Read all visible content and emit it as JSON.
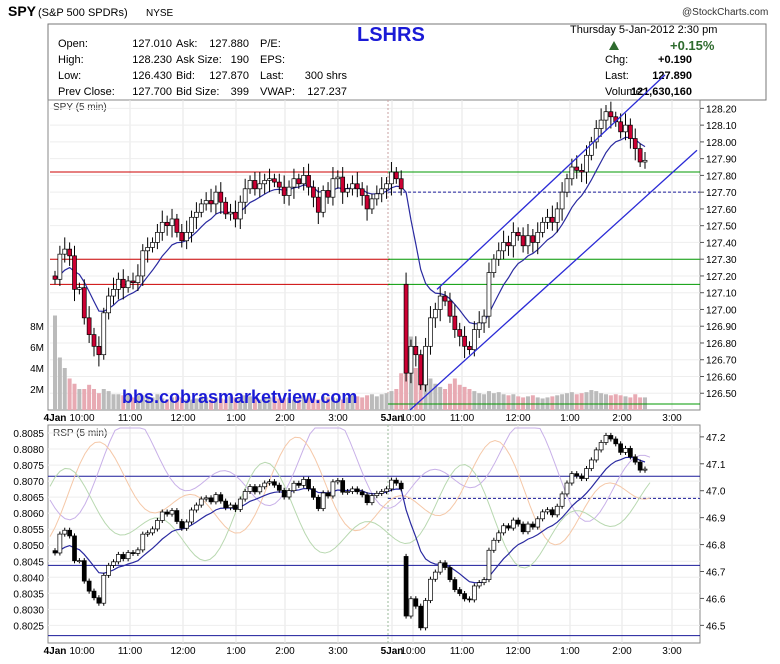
{
  "header": {
    "symbol": "SPY",
    "name": "(S&P 500 SPDRs)",
    "exchange": "NYSE",
    "watermark": "@StockCharts.com",
    "title_center": "LSHRS",
    "date_line": "Thursday  5-Jan-2012  2:30 pm",
    "change_pct": "+0.15%",
    "quote_left": [
      {
        "label": "Open:",
        "value": "127.010"
      },
      {
        "label": "High:",
        "value": "128.230"
      },
      {
        "label": "Low:",
        "value": "126.430"
      },
      {
        "label": "Prev Close:",
        "value": "127.700"
      }
    ],
    "quote_mid": [
      {
        "label": "Ask:",
        "value": "127.880"
      },
      {
        "label": "Ask Size:",
        "value": "190"
      },
      {
        "label": "Bid:",
        "value": "127.870"
      },
      {
        "label": "Bid Size:",
        "value": "399"
      }
    ],
    "quote_right": [
      {
        "label": "P/E:",
        "value": ""
      },
      {
        "label": "EPS:",
        "value": ""
      },
      {
        "label": "Last:",
        "value": "300 shrs"
      },
      {
        "label": "VWAP:",
        "value": "127.237"
      }
    ],
    "quote_far": [
      {
        "label": "Chg:",
        "value": "+0.190"
      },
      {
        "label": "Last:",
        "value": "127.890"
      },
      {
        "label": "Volume:",
        "value": "121,630,160"
      }
    ]
  },
  "overlay_text": "bbs.cobrasmarketview.com",
  "colors": {
    "up": "#ffffff",
    "down": "#cc0033",
    "ma": "#2a2aa0",
    "trend": "#2b2bd6",
    "red_line": "#cc0000",
    "green_line": "#009900",
    "blue_line": "#1a1a9a"
  },
  "chart_data": [
    {
      "type": "candlestick",
      "title": "SPY (5 min)",
      "ylim": [
        126.4,
        128.25
      ],
      "y_ticks": [
        128.2,
        128.1,
        128.0,
        127.9,
        127.8,
        127.7,
        127.6,
        127.5,
        127.4,
        127.3,
        127.2,
        127.1,
        127.0,
        126.9,
        126.8,
        126.7,
        126.6,
        126.5
      ],
      "y_tick_labels": [
        "128.20",
        "128.10",
        "128.00",
        "127.90",
        "127.80",
        "127.70",
        "127.60",
        "127.50",
        "127.40",
        "127.30",
        "127.20",
        "127.10",
        "127.00",
        "126.90",
        "126.80",
        "126.70",
        "126.60",
        "126.50"
      ],
      "volume_ticks": [
        "8M",
        "6M",
        "4M",
        "2M"
      ],
      "volume_tick_values": [
        8,
        6,
        4,
        2
      ],
      "horizontal_lines": [
        {
          "value": 127.82,
          "color": "red"
        },
        {
          "value": 127.3,
          "color": "red"
        },
        {
          "value": 127.15,
          "color": "red"
        },
        {
          "value": 127.82,
          "color": "green"
        },
        {
          "value": 127.3,
          "color": "green"
        },
        {
          "value": 127.15,
          "color": "green"
        },
        {
          "value": 127.7,
          "color": "blue-dashed"
        },
        {
          "value": 126.43,
          "color": "green"
        }
      ],
      "close": [
        127.18,
        127.33,
        127.36,
        127.32,
        127.12,
        127.13,
        126.95,
        126.85,
        126.78,
        126.73,
        126.98,
        127.08,
        127.12,
        127.18,
        127.13,
        127.17,
        127.16,
        127.2,
        127.35,
        127.37,
        127.4,
        127.46,
        127.52,
        127.5,
        127.54,
        127.46,
        127.41,
        127.46,
        127.55,
        127.58,
        127.63,
        127.65,
        127.63,
        127.7,
        127.64,
        127.57,
        127.58,
        127.54,
        127.64,
        127.72,
        127.77,
        127.72,
        127.75,
        127.77,
        127.78,
        127.76,
        127.73,
        127.68,
        127.73,
        127.78,
        127.75,
        127.8,
        127.73,
        127.67,
        127.58,
        127.71,
        127.67,
        127.78,
        127.79,
        127.7,
        127.72,
        127.75,
        127.72,
        127.68,
        127.6,
        127.66,
        127.69,
        127.72,
        127.75,
        127.82,
        127.78,
        127.72,
        126.62,
        126.78,
        126.73,
        126.55,
        126.78,
        126.95,
        127.0,
        127.08,
        127.05,
        126.96,
        126.88,
        126.84,
        126.78,
        126.76,
        126.88,
        126.92,
        126.96,
        127.22,
        127.3,
        127.35,
        127.4,
        127.38,
        127.46,
        127.44,
        127.38,
        127.44,
        127.4,
        127.46,
        127.52,
        127.55,
        127.52,
        127.6,
        127.7,
        127.78,
        127.85,
        127.83,
        127.82,
        127.92,
        128.0,
        128.08,
        128.13,
        128.18,
        128.15,
        128.12,
        128.06,
        128.1,
        128.02,
        127.96,
        127.88,
        127.89
      ]
    },
    {
      "type": "line",
      "title": "RSP (5 min)",
      "ylim": [
        0.80195,
        0.80875
      ],
      "y_ticks": [
        0.8085,
        0.808,
        0.8075,
        0.807,
        0.8065,
        0.806,
        0.8055,
        0.805,
        0.8045,
        0.804,
        0.8035,
        0.803,
        0.8025
      ],
      "y_tick_labels": [
        "0.8085",
        "0.8080",
        "0.8075",
        "0.8070",
        "0.8065",
        "0.8060",
        "0.8055",
        "0.8050",
        "0.8045",
        "0.8040",
        "0.8035",
        "0.8030",
        "0.8025"
      ],
      "y2_tick_values": [
        47.2,
        47.1,
        47.0,
        46.9,
        46.8,
        46.7,
        46.6,
        46.5
      ],
      "y2_tick_labels": [
        "47.2",
        "47.1",
        "47.0",
        "46.9",
        "46.8",
        "46.7",
        "46.6",
        "46.5"
      ]
    }
  ],
  "x_labels": [
    "4Jan",
    "10:00",
    "11:00",
    "12:00",
    "1:00",
    "2:00",
    "3:00",
    "5Jan",
    "10:00",
    "11:00",
    "12:00",
    "1:00",
    "2:00",
    "3:00"
  ]
}
